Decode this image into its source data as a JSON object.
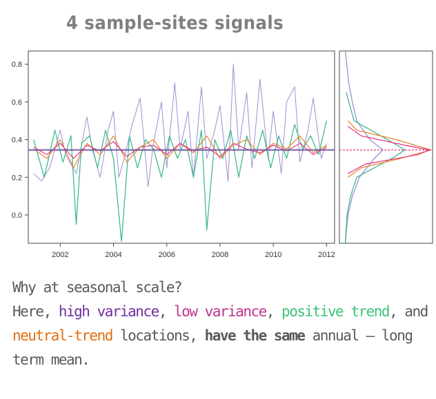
{
  "title": "4 sample-sites signals",
  "colors": {
    "high_variance": "#9a8fd3",
    "low_variance": "#e73a8a",
    "positive_trend": "#3fb98c",
    "neutral_trend": "#e8852e",
    "mean_line": "#6a4f9a",
    "axis": "#444444"
  },
  "caption": {
    "line1": "Why at seasonal scale?",
    "line2_prefix": "Here, ",
    "high_variance": "high variance",
    "comma1": ", ",
    "low_variance": "low variance",
    "comma2": ", ",
    "positive_trend": "positive trend",
    "line2_suffix": ", and",
    "neutral_trend": "neutral-trend",
    "line3_mid": " locations, ",
    "bold_text": "have the same",
    "line3_end": " annual – long",
    "line4": "term mean."
  },
  "chart_data": [
    {
      "type": "line",
      "title": "",
      "xlabel": "",
      "ylabel": "",
      "xlim": [
        2000.8,
        2012.3
      ],
      "ylim": [
        -0.15,
        0.87
      ],
      "x_ticks": [
        2002,
        2004,
        2006,
        2008,
        2010,
        2012
      ],
      "y_ticks": [
        0.0,
        0.2,
        0.4,
        0.6,
        0.8
      ],
      "y_tick_labels": [
        "0.0",
        "0.2",
        "0.4",
        "0.6",
        "0.8"
      ],
      "mean_value": 0.345,
      "series": [
        {
          "color_key": "high_variance",
          "x": [
            2001.0,
            2001.3,
            2001.6,
            2002.0,
            2002.2,
            2002.6,
            2003.0,
            2003.2,
            2003.5,
            2003.8,
            2004.0,
            2004.2,
            2004.4,
            2004.7,
            2005.0,
            2005.3,
            2005.5,
            2005.8,
            2006.0,
            2006.3,
            2006.5,
            2006.8,
            2007.0,
            2007.3,
            2007.5,
            2007.8,
            2008.0,
            2008.3,
            2008.5,
            2008.7,
            2009.0,
            2009.2,
            2009.5,
            2009.8,
            2010.0,
            2010.3,
            2010.5,
            2010.8,
            2011.0,
            2011.3,
            2011.5,
            2011.8,
            2012.0
          ],
          "y": [
            0.22,
            0.18,
            0.25,
            0.45,
            0.32,
            0.22,
            0.52,
            0.35,
            0.2,
            0.45,
            0.55,
            0.2,
            0.3,
            0.48,
            0.62,
            0.15,
            0.38,
            0.6,
            0.25,
            0.7,
            0.35,
            0.55,
            0.2,
            0.68,
            0.3,
            0.45,
            0.58,
            0.18,
            0.8,
            0.35,
            0.65,
            0.25,
            0.72,
            0.3,
            0.55,
            0.22,
            0.6,
            0.68,
            0.28,
            0.45,
            0.62,
            0.3,
            0.38
          ]
        },
        {
          "color_key": "positive_trend",
          "x": [
            2001.0,
            2001.4,
            2001.8,
            2002.1,
            2002.4,
            2002.6,
            2002.8,
            2003.1,
            2003.4,
            2003.7,
            2004.0,
            2004.3,
            2004.6,
            2004.9,
            2005.2,
            2005.5,
            2005.8,
            2006.1,
            2006.4,
            2006.7,
            2007.0,
            2007.3,
            2007.5,
            2007.8,
            2008.1,
            2008.4,
            2008.7,
            2009.0,
            2009.3,
            2009.6,
            2009.9,
            2010.2,
            2010.5,
            2010.8,
            2011.1,
            2011.4,
            2011.7,
            2012.0
          ],
          "y": [
            0.4,
            0.2,
            0.45,
            0.28,
            0.42,
            -0.05,
            0.38,
            0.42,
            0.25,
            0.45,
            0.3,
            -0.14,
            0.42,
            0.25,
            0.4,
            0.35,
            0.2,
            0.42,
            0.3,
            0.4,
            0.2,
            0.45,
            -0.08,
            0.4,
            0.3,
            0.45,
            0.2,
            0.42,
            0.3,
            0.45,
            0.25,
            0.42,
            0.3,
            0.48,
            0.35,
            0.42,
            0.32,
            0.5
          ]
        },
        {
          "color_key": "neutral_trend",
          "x": [
            2001.0,
            2001.5,
            2002.0,
            2002.5,
            2003.0,
            2003.5,
            2004.0,
            2004.5,
            2005.0,
            2005.5,
            2006.0,
            2006.5,
            2007.0,
            2007.5,
            2008.0,
            2008.5,
            2009.0,
            2009.5,
            2010.0,
            2010.5,
            2011.0,
            2011.5,
            2012.0
          ],
          "y": [
            0.35,
            0.3,
            0.4,
            0.25,
            0.38,
            0.32,
            0.42,
            0.28,
            0.36,
            0.4,
            0.3,
            0.38,
            0.33,
            0.42,
            0.3,
            0.37,
            0.4,
            0.32,
            0.38,
            0.35,
            0.42,
            0.33,
            0.37
          ]
        },
        {
          "color_key": "low_variance",
          "x": [
            2001.0,
            2001.5,
            2002.0,
            2002.5,
            2003.0,
            2003.5,
            2004.0,
            2004.5,
            2005.0,
            2005.5,
            2006.0,
            2006.5,
            2007.0,
            2007.5,
            2008.0,
            2008.5,
            2009.0,
            2009.5,
            2010.0,
            2010.5,
            2011.0,
            2011.5,
            2012.0
          ],
          "y": [
            0.36,
            0.32,
            0.38,
            0.3,
            0.37,
            0.34,
            0.39,
            0.31,
            0.36,
            0.37,
            0.32,
            0.38,
            0.34,
            0.36,
            0.31,
            0.38,
            0.35,
            0.33,
            0.37,
            0.34,
            0.38,
            0.32,
            0.36
          ]
        }
      ]
    },
    {
      "type": "line",
      "title": "",
      "xlabel": "",
      "ylabel": "",
      "ylim": [
        -0.15,
        0.87
      ],
      "density_peak_value": 0.345,
      "series": [
        {
          "color_key": "high_variance",
          "y": [
            -0.15,
            0.0,
            0.1,
            0.2,
            0.3,
            0.345,
            0.4,
            0.5,
            0.6,
            0.7,
            0.87
          ],
          "density": [
            0.02,
            0.05,
            0.1,
            0.18,
            0.35,
            0.45,
            0.3,
            0.15,
            0.1,
            0.06,
            0.02
          ]
        },
        {
          "color_key": "positive_trend",
          "y": [
            -0.15,
            0.0,
            0.1,
            0.2,
            0.3,
            0.345,
            0.4,
            0.5,
            0.6,
            0.65
          ],
          "density": [
            0.02,
            0.04,
            0.08,
            0.15,
            0.55,
            0.7,
            0.5,
            0.12,
            0.06,
            0.03
          ]
        },
        {
          "color_key": "neutral_trend",
          "y": [
            0.2,
            0.25,
            0.3,
            0.345,
            0.4,
            0.45,
            0.5
          ],
          "density": [
            0.05,
            0.2,
            0.65,
            1.0,
            0.6,
            0.15,
            0.05
          ]
        },
        {
          "color_key": "low_variance",
          "y": [
            0.22,
            0.27,
            0.32,
            0.345,
            0.37,
            0.42,
            0.47
          ],
          "density": [
            0.05,
            0.25,
            0.85,
            0.98,
            0.7,
            0.2,
            0.05
          ]
        }
      ]
    }
  ]
}
